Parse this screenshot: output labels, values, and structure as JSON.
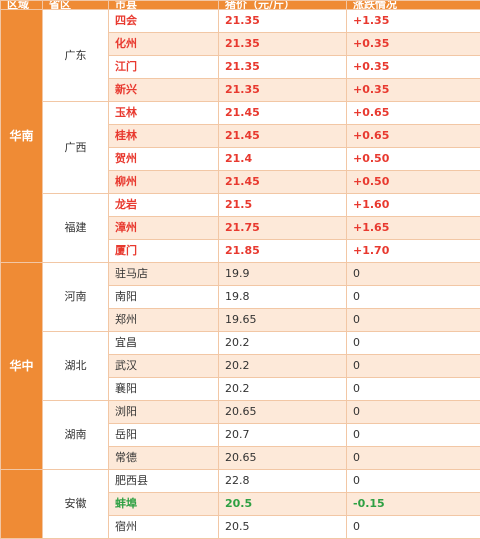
{
  "headers": {
    "region": "区域",
    "province": "省区",
    "city": "市县",
    "price": "猪价（元/斤）",
    "change": "涨跌情况"
  },
  "regions": [
    {
      "name": "华南",
      "provinces": [
        {
          "name": "广东",
          "rows": [
            {
              "city": "四会",
              "price": "21.35",
              "change": "+1.35",
              "style": "up"
            },
            {
              "city": "化州",
              "price": "21.35",
              "change": "+0.35",
              "style": "up"
            },
            {
              "city": "江门",
              "price": "21.35",
              "change": "+0.35",
              "style": "up"
            },
            {
              "city": "新兴",
              "price": "21.35",
              "change": "+0.35",
              "style": "up"
            }
          ]
        },
        {
          "name": "广西",
          "rows": [
            {
              "city": "玉林",
              "price": "21.45",
              "change": "+0.65",
              "style": "up"
            },
            {
              "city": "桂林",
              "price": "21.45",
              "change": "+0.65",
              "style": "up"
            },
            {
              "city": "贺州",
              "price": "21.4",
              "change": "+0.50",
              "style": "up"
            },
            {
              "city": "柳州",
              "price": "21.45",
              "change": "+0.50",
              "style": "up"
            }
          ]
        },
        {
          "name": "福建",
          "rows": [
            {
              "city": "龙岩",
              "price": "21.5",
              "change": "+1.60",
              "style": "up"
            },
            {
              "city": "漳州",
              "price": "21.75",
              "change": "+1.65",
              "style": "up"
            },
            {
              "city": "厦门",
              "price": "21.85",
              "change": "+1.70",
              "style": "up"
            }
          ]
        }
      ]
    },
    {
      "name": "华中",
      "provinces": [
        {
          "name": "河南",
          "rows": [
            {
              "city": "驻马店",
              "price": "19.9",
              "change": "0",
              "style": "flat"
            },
            {
              "city": "南阳",
              "price": "19.8",
              "change": "0",
              "style": "flat"
            },
            {
              "city": "郑州",
              "price": "19.65",
              "change": "0",
              "style": "flat"
            }
          ]
        },
        {
          "name": "湖北",
          "rows": [
            {
              "city": "宜昌",
              "price": "20.2",
              "change": "0",
              "style": "flat"
            },
            {
              "city": "武汉",
              "price": "20.2",
              "change": "0",
              "style": "flat"
            },
            {
              "city": "襄阳",
              "price": "20.2",
              "change": "0",
              "style": "flat"
            }
          ]
        },
        {
          "name": "湖南",
          "rows": [
            {
              "city": "浏阳",
              "price": "20.65",
              "change": "0",
              "style": "flat"
            },
            {
              "city": "岳阳",
              "price": "20.7",
              "change": "0",
              "style": "flat"
            },
            {
              "city": "常德",
              "price": "20.65",
              "change": "0",
              "style": "flat"
            }
          ]
        }
      ]
    },
    {
      "name": "",
      "provinces": [
        {
          "name": "安徽",
          "rows": [
            {
              "city": "肥西县",
              "price": "22.8",
              "change": "0",
              "style": "flat"
            },
            {
              "city": "蚌埠",
              "price": "20.5",
              "change": "-0.15",
              "style": "down"
            },
            {
              "city": "宿州",
              "price": "20.5",
              "change": "0",
              "style": "flat"
            }
          ]
        }
      ]
    }
  ]
}
